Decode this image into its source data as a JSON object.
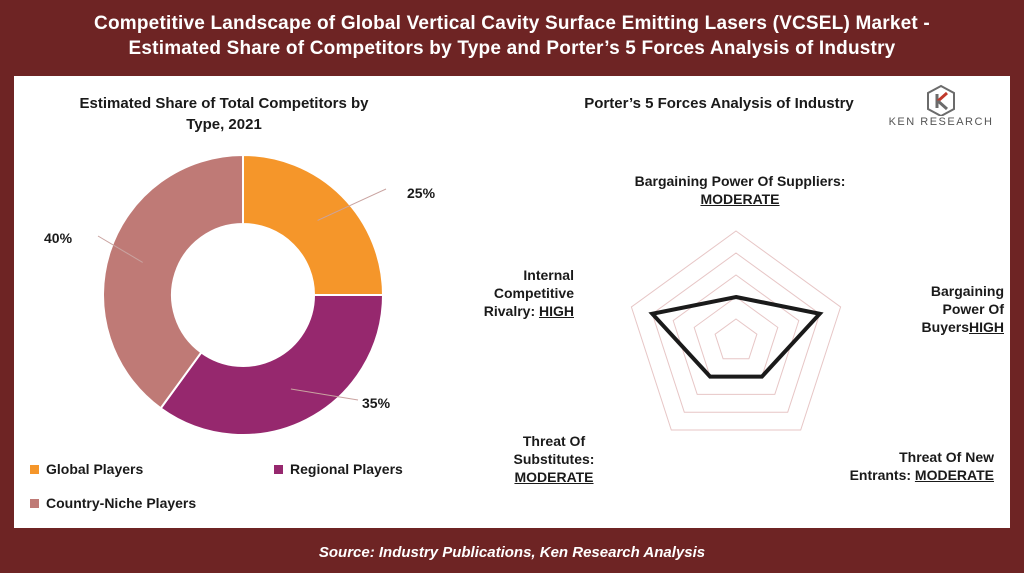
{
  "header": {
    "line1": "Competitive Landscape of Global Vertical Cavity Surface Emitting Lasers (VCSEL) Market -",
    "line2": "Estimated Share of Competitors by Type and Porter’s 5 Forces Analysis of Industry"
  },
  "footer": {
    "source": "Source: Industry Publications, Ken Research Analysis"
  },
  "logo": {
    "text": "KEN RESEARCH",
    "icon": "ken-research-logo-icon",
    "color": "#555555"
  },
  "colors": {
    "frame": "#6e2424",
    "global": "#f5962a",
    "regional": "#96286e",
    "niche": "#bf7a76",
    "radar_line": "#1a1a1a",
    "radar_grid": "#e7c6c6"
  },
  "chart_data": [
    {
      "type": "pie",
      "variant": "donut",
      "title": "Estimated Share of Total Competitors by Type, 2021",
      "slices": [
        {
          "name": "Global Players",
          "value": 25,
          "label": "25%",
          "color": "#f5962a"
        },
        {
          "name": "Regional Players",
          "value": 35,
          "label": "35%",
          "color": "#96286e"
        },
        {
          "name": "Country-Niche Players",
          "value": 40,
          "label": "40%",
          "color": "#bf7a76"
        }
      ],
      "legend": "bottom"
    },
    {
      "type": "radar",
      "title": "Porter’s 5 Forces Analysis of Industry",
      "scale_levels": 5,
      "axes": [
        {
          "name": "Bargaining Power Of Suppliers:",
          "rating": "MODERATE",
          "value": 2
        },
        {
          "name": "Bargaining Power Of Buyers",
          "rating": "HIGH",
          "value": 4
        },
        {
          "name": "Threat Of New Entrants:",
          "rating": "MODERATE",
          "value": 2
        },
        {
          "name": "Threat Of Substitutes:",
          "rating": "MODERATE",
          "value": 2
        },
        {
          "name": "Internal Competitive Rivalry:",
          "rating": "HIGH",
          "value": 4
        }
      ]
    }
  ]
}
